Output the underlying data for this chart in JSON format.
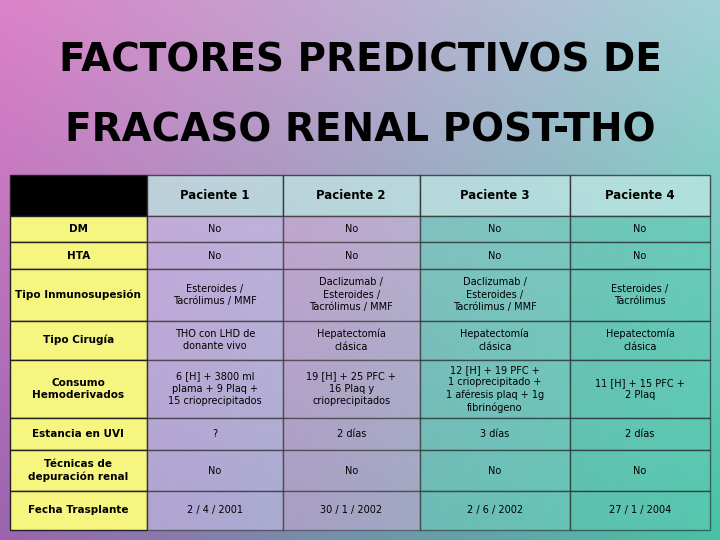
{
  "title_line1": "FACTORES PREDICTIVOS DE",
  "title_line2": "FRACASO RENAL POST-THO",
  "columns": [
    "",
    "Paciente 1",
    "Paciente 2",
    "Paciente 3",
    "Paciente 4"
  ],
  "rows": [
    {
      "label": "DM",
      "values": [
        "No",
        "No",
        "No",
        "No"
      ]
    },
    {
      "label": "HTA",
      "values": [
        "No",
        "No",
        "No",
        "No"
      ]
    },
    {
      "label": "Tipo Inmunosupesión",
      "values": [
        "Esteroides /\nTacrólimus / MMF",
        "Daclizumab /\nEsteroides /\nTacrólimus / MMF",
        "Daclizumab /\nEsteroides /\nTacrólimus / MMF",
        "Esteroides /\nTacrólimus"
      ]
    },
    {
      "label": "Tipo Cirugía",
      "values": [
        "THO con LHD de\ndonante vivo",
        "Hepatectomía\nclásica",
        "Hepatectomía\nclásica",
        "Hepatectomía\nclásica"
      ]
    },
    {
      "label": "Consumo\nHemoderivados",
      "values": [
        "6 [H] + 3800 ml\nplama + 9 Plaq +\n15 crioprecipitados",
        "19 [H] + 25 PFC +\n16 Plaq y\ncrioprecipitados",
        "12 [H] + 19 PFC +\n1 crioprecipitado +\n1 aféresis plaq + 1g\nfibrinógeno",
        "11 [H] + 15 PFC +\n2 Plaq"
      ]
    },
    {
      "label": "Estancia en UVI",
      "values": [
        "?",
        "2 días",
        "3 días",
        "2 días"
      ]
    },
    {
      "label": "Técnicas de\ndepuración renal",
      "values": [
        "No",
        "No",
        "No",
        "No"
      ]
    },
    {
      "label": "Fecha Trasplante",
      "values": [
        "2 / 4 / 2001",
        "30 / 1 / 2002",
        "2 / 6 / 2002",
        "27 / 1 / 2004"
      ]
    }
  ],
  "title_color": "#000000",
  "label_col_bg": "#f5f580",
  "label_col_text": "#000000",
  "header_cell_bg": "#b8e8e0",
  "border_color": "#222222",
  "cell_alpha": 0.35
}
